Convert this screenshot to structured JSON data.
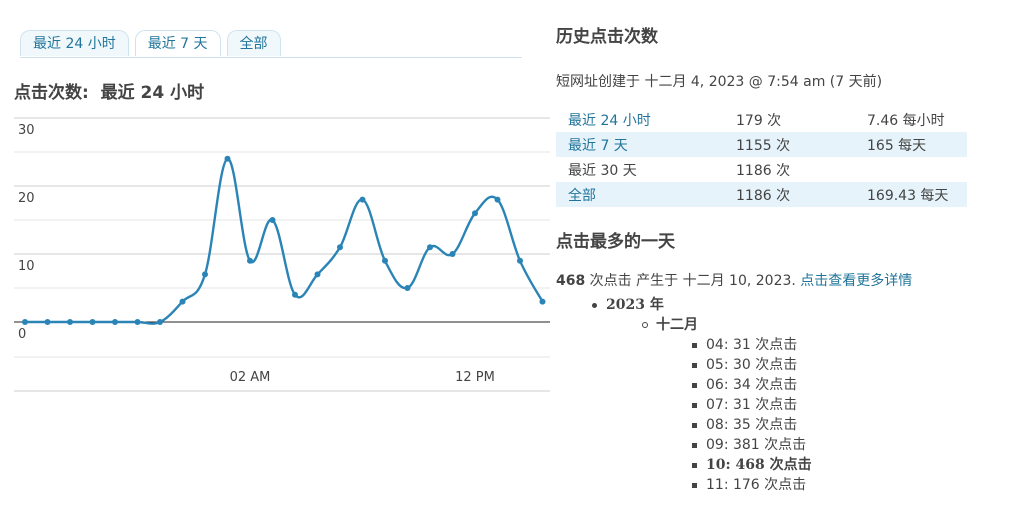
{
  "tabs": [
    {
      "label": "最近 24 小时"
    },
    {
      "label": "最近 7 天"
    },
    {
      "label": "全部"
    }
  ],
  "chart_heading": "点击次数:  最近 24 小时",
  "chart_data": {
    "type": "line",
    "ylim": [
      0,
      30
    ],
    "yticks": [
      "0",
      "10",
      "20",
      "30"
    ],
    "xticks": [
      {
        "label": "02 AM",
        "index": 10
      },
      {
        "label": "12 PM",
        "index": 20
      }
    ],
    "series": [
      {
        "values": [
          0,
          0,
          0,
          0,
          0,
          0,
          0,
          3,
          7,
          24,
          9,
          15,
          4,
          7,
          11,
          18,
          9,
          5,
          11,
          10,
          16,
          18,
          9,
          3
        ]
      }
    ],
    "color": "#2a84b5",
    "grid": true
  },
  "history": {
    "title": "历史点击次数",
    "created": "短网址创建于 十二月 4, 2023 @ 7:54 am (7 天前)",
    "rows": [
      {
        "label": "最近 24 小时",
        "count": "179 次",
        "rate": "7.46 每小时"
      },
      {
        "label": "最近 7 天",
        "count": "1155 次",
        "rate": "165 每天"
      },
      {
        "label": "最近 30 天",
        "count": "1186 次",
        "rate": ""
      },
      {
        "label": "全部",
        "count": "1186 次",
        "rate": "169.43 每天"
      }
    ]
  },
  "best": {
    "title": "点击最多的一天",
    "count": "468",
    "text": " 次点击 产生于 十二月 10, 2023. ",
    "link": "点击查看更多详情",
    "year": "2023 年",
    "month": "十二月",
    "days": [
      "04: 31 次点击",
      "05: 30 次点击",
      "06: 34 次点击",
      "07: 31 次点击",
      "08: 35 次点击",
      "09: 381 次点击",
      "10: 468 次点击",
      "11: 176 次点击"
    ],
    "highlight_index": 6
  }
}
